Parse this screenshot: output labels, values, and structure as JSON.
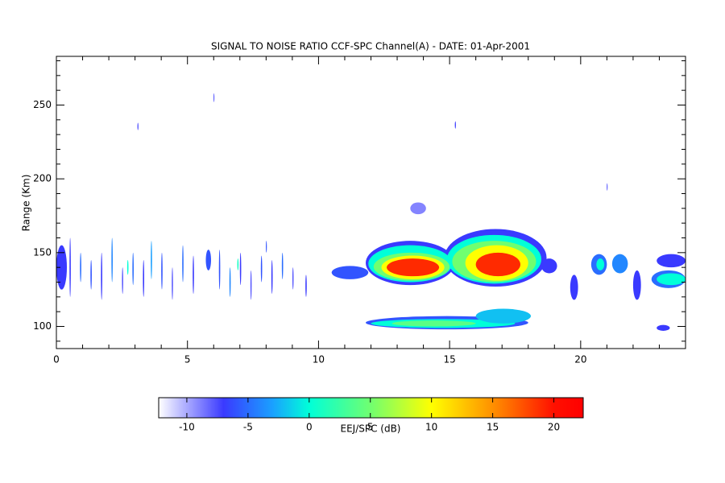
{
  "chart_data": {
    "type": "heatmap",
    "title": "SIGNAL TO NOISE RATIO CCF-SPC Channel(A) - DATE: 01-Apr-2001",
    "ylabel": "Range (Km)",
    "colorbar_label": "EEJ/SPC (dB)",
    "xlim": [
      0,
      24
    ],
    "ylim": [
      85,
      283
    ],
    "xticks": [
      0,
      5,
      10,
      15,
      20
    ],
    "yticks": [
      100,
      150,
      200,
      250
    ],
    "xminorticks": [
      1,
      2,
      3,
      4,
      6,
      7,
      8,
      9,
      11,
      12,
      13,
      14,
      16,
      17,
      18,
      19,
      21,
      22,
      23
    ],
    "yminorticks": [
      90,
      110,
      120,
      130,
      140,
      160,
      170,
      180,
      190,
      210,
      220,
      230,
      240,
      260,
      270,
      280
    ],
    "clim": [
      -12.3,
      22.4
    ],
    "cticks": [
      -10,
      -5,
      0,
      5,
      10,
      15,
      20
    ],
    "colormap": [
      {
        "value": -12.3,
        "color": "#ffffff"
      },
      {
        "value": -7,
        "color": "#3a3aff"
      },
      {
        "value": -3,
        "color": "#1aa0ff"
      },
      {
        "value": 0,
        "color": "#00ffd8"
      },
      {
        "value": 5,
        "color": "#70ff70"
      },
      {
        "value": 10,
        "color": "#ffff00"
      },
      {
        "value": 15,
        "color": "#ff9000"
      },
      {
        "value": 20,
        "color": "#ff1000"
      },
      {
        "value": 22.4,
        "color": "#ff0000"
      }
    ],
    "features": [
      {
        "t": [
          11.8,
          15.2
        ],
        "r": [
          128,
          158
        ],
        "value": -7
      },
      {
        "t": [
          14.8,
          18.7
        ],
        "r": [
          127,
          166
        ],
        "value": -7
      },
      {
        "t": [
          11.9,
          15.1
        ],
        "r": [
          130,
          155
        ],
        "value": 0
      },
      {
        "t": [
          14.9,
          18.5
        ],
        "r": [
          129,
          162
        ],
        "value": 0
      },
      {
        "t": [
          12.1,
          15.0
        ],
        "r": [
          131,
          150
        ],
        "value": 5
      },
      {
        "t": [
          15.1,
          18.3
        ],
        "r": [
          130,
          158
        ],
        "value": 5
      },
      {
        "t": [
          12.4,
          14.8
        ],
        "r": [
          132,
          148
        ],
        "value": 10
      },
      {
        "t": [
          15.6,
          18.0
        ],
        "r": [
          131,
          155
        ],
        "value": 10
      },
      {
        "t": [
          12.6,
          14.6
        ],
        "r": [
          134,
          146
        ],
        "value": 19
      },
      {
        "t": [
          16.0,
          17.7
        ],
        "r": [
          134,
          150
        ],
        "value": 19
      },
      {
        "t": [
          10.5,
          11.9
        ],
        "r": [
          132,
          141
        ],
        "value": -6
      },
      {
        "t": [
          18.5,
          19.1
        ],
        "r": [
          136,
          146
        ],
        "value": -7
      },
      {
        "t": [
          11.8,
          18.0
        ],
        "r": [
          98,
          107
        ],
        "value": -6
      },
      {
        "t": [
          12.0,
          17.5
        ],
        "r": [
          99,
          105
        ],
        "value": 0
      },
      {
        "t": [
          12.8,
          16.0
        ],
        "r": [
          100,
          104
        ],
        "value": 4
      },
      {
        "t": [
          16.0,
          18.1
        ],
        "r": [
          102,
          112
        ],
        "value": -2
      },
      {
        "t": [
          13.5,
          14.1
        ],
        "r": [
          176,
          184
        ],
        "value": -9
      },
      {
        "t": [
          20.4,
          21.0
        ],
        "r": [
          135,
          149
        ],
        "value": -5
      },
      {
        "t": [
          20.6,
          20.9
        ],
        "r": [
          138,
          146
        ],
        "value": 0
      },
      {
        "t": [
          21.2,
          21.8
        ],
        "r": [
          136,
          149
        ],
        "value": -4
      },
      {
        "t": [
          22.7,
          24.0
        ],
        "r": [
          126,
          138
        ],
        "value": -5
      },
      {
        "t": [
          22.9,
          24.0
        ],
        "r": [
          128,
          136
        ],
        "value": 0
      },
      {
        "t": [
          22.9,
          23.4
        ],
        "r": [
          97,
          101
        ],
        "value": -7
      },
      {
        "t": [
          22.9,
          24.0
        ],
        "r": [
          140,
          149
        ],
        "value": -7
      },
      {
        "t": [
          0.0,
          0.4
        ],
        "r": [
          125,
          155
        ],
        "value": -7
      },
      {
        "t": [
          5.7,
          5.9
        ],
        "r": [
          138,
          152
        ],
        "value": -6
      },
      {
        "t": [
          0.5,
          0.55
        ],
        "r": [
          120,
          160
        ],
        "value": -7
      },
      {
        "t": [
          0.9,
          0.95
        ],
        "r": [
          130,
          150
        ],
        "value": -5
      },
      {
        "t": [
          1.3,
          1.35
        ],
        "r": [
          125,
          145
        ],
        "value": -6
      },
      {
        "t": [
          1.7,
          1.75
        ],
        "r": [
          118,
          150
        ],
        "value": -7
      },
      {
        "t": [
          2.1,
          2.15
        ],
        "r": [
          130,
          160
        ],
        "value": -4
      },
      {
        "t": [
          2.5,
          2.55
        ],
        "r": [
          122,
          140
        ],
        "value": -8
      },
      {
        "t": [
          2.9,
          2.95
        ],
        "r": [
          128,
          150
        ],
        "value": -5
      },
      {
        "t": [
          3.3,
          3.35
        ],
        "r": [
          120,
          145
        ],
        "value": -7
      },
      {
        "t": [
          3.6,
          3.65
        ],
        "r": [
          132,
          158
        ],
        "value": -3
      },
      {
        "t": [
          4.0,
          4.05
        ],
        "r": [
          125,
          150
        ],
        "value": -6
      },
      {
        "t": [
          4.4,
          4.45
        ],
        "r": [
          118,
          140
        ],
        "value": -8
      },
      {
        "t": [
          4.8,
          4.85
        ],
        "r": [
          130,
          155
        ],
        "value": -5
      },
      {
        "t": [
          5.2,
          5.25
        ],
        "r": [
          122,
          148
        ],
        "value": -7
      },
      {
        "t": [
          6.2,
          6.25
        ],
        "r": [
          125,
          152
        ],
        "value": -6
      },
      {
        "t": [
          6.6,
          6.65
        ],
        "r": [
          120,
          140
        ],
        "value": -4
      },
      {
        "t": [
          7.0,
          7.05
        ],
        "r": [
          128,
          150
        ],
        "value": -7
      },
      {
        "t": [
          7.4,
          7.45
        ],
        "r": [
          118,
          138
        ],
        "value": -8
      },
      {
        "t": [
          7.8,
          7.85
        ],
        "r": [
          130,
          148
        ],
        "value": -6
      },
      {
        "t": [
          8.2,
          8.25
        ],
        "r": [
          122,
          145
        ],
        "value": -7
      },
      {
        "t": [
          8.6,
          8.65
        ],
        "r": [
          132,
          150
        ],
        "value": -5
      },
      {
        "t": [
          9.0,
          9.05
        ],
        "r": [
          125,
          140
        ],
        "value": -8
      },
      {
        "t": [
          9.5,
          9.55
        ],
        "r": [
          120,
          135
        ],
        "value": -7
      },
      {
        "t": [
          2.7,
          2.75
        ],
        "r": [
          135,
          145
        ],
        "value": 0
      },
      {
        "t": [
          6.9,
          6.95
        ],
        "r": [
          138,
          146
        ],
        "value": 1
      },
      {
        "t": [
          3.1,
          3.12
        ],
        "r": [
          233,
          238
        ],
        "value": -7
      },
      {
        "t": [
          6.0,
          6.02
        ],
        "r": [
          252,
          258
        ],
        "value": -8
      },
      {
        "t": [
          8.0,
          8.02
        ],
        "r": [
          150,
          158
        ],
        "value": -6
      },
      {
        "t": [
          15.2,
          15.24
        ],
        "r": [
          234,
          239
        ],
        "value": -7
      },
      {
        "t": [
          21.0,
          21.02
        ],
        "r": [
          192,
          197
        ],
        "value": -8
      },
      {
        "t": [
          19.6,
          19.9
        ],
        "r": [
          118,
          135
        ],
        "value": -7
      },
      {
        "t": [
          22.0,
          22.3
        ],
        "r": [
          118,
          138
        ],
        "value": -7
      }
    ]
  }
}
